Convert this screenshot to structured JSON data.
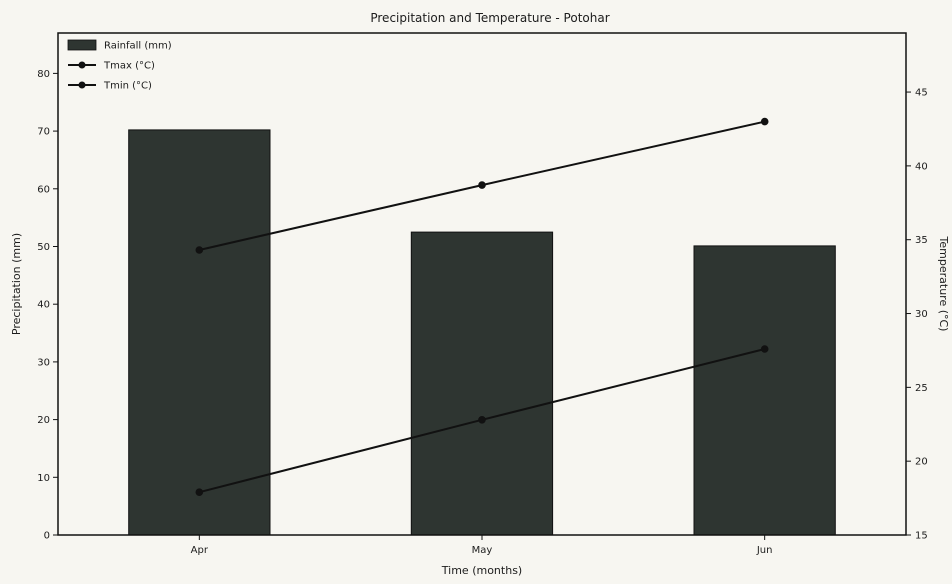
{
  "chart_data": {
    "type": "bar",
    "title": "Precipitation and Temperature - Potohar",
    "xlabel": "Time (months)",
    "ylabel": "Precipitation (mm)",
    "y2label": "Temperature (°C)",
    "categories": [
      "Apr",
      "May",
      "Jun"
    ],
    "ylim": [
      0,
      87
    ],
    "y2lim": [
      15,
      49
    ],
    "yticks": [
      0,
      10,
      20,
      30,
      40,
      50,
      60,
      70,
      80
    ],
    "y2ticks": [
      15,
      20,
      25,
      30,
      35,
      40,
      45
    ],
    "grid": false,
    "legend_position": "top-left",
    "series": [
      {
        "name": "Rainfall (mm)",
        "type": "bar",
        "axis": "left",
        "values": [
          70.2,
          52.5,
          50.1
        ],
        "color": "#2e3531"
      },
      {
        "name": "Tmax (°C)",
        "type": "line",
        "axis": "right",
        "values": [
          34.3,
          38.7,
          43.0
        ],
        "color": "#111111"
      },
      {
        "name": "Tmin (°C)",
        "type": "line",
        "axis": "right",
        "values": [
          17.9,
          22.8,
          27.6
        ],
        "color": "#111111"
      }
    ]
  }
}
